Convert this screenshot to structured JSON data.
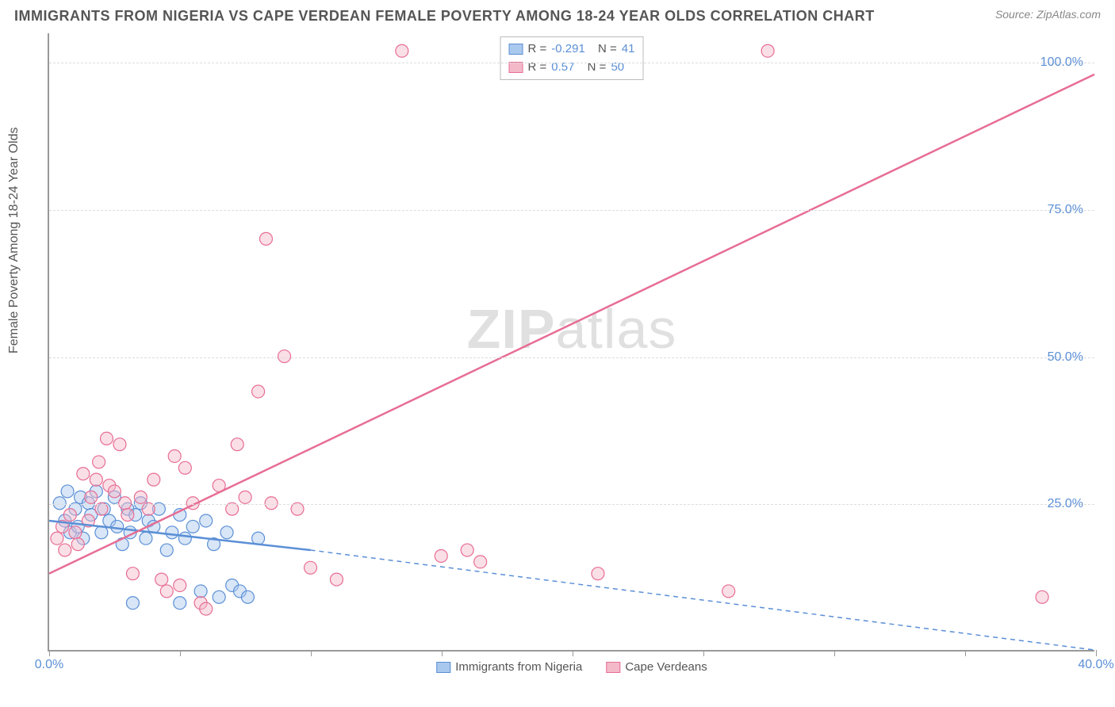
{
  "title": "IMMIGRANTS FROM NIGERIA VS CAPE VERDEAN FEMALE POVERTY AMONG 18-24 YEAR OLDS CORRELATION CHART",
  "source": "Source: ZipAtlas.com",
  "watermark": "ZIPatlas",
  "ylabel": "Female Poverty Among 18-24 Year Olds",
  "chart": {
    "type": "scatter-with-regression",
    "background_color": "#ffffff",
    "grid_color": "#dddddd",
    "axis_color": "#999999",
    "tick_label_color": "#5b8fd6",
    "xlim": [
      0,
      40
    ],
    "ylim": [
      0,
      105
    ],
    "xticks": [
      0,
      5,
      10,
      15,
      20,
      25,
      30,
      35,
      40
    ],
    "xtick_labels": {
      "0": "0.0%",
      "40": "40.0%"
    },
    "yticks": [
      25,
      50,
      75,
      100
    ],
    "ytick_labels": {
      "25": "25.0%",
      "50": "50.0%",
      "75": "75.0%",
      "100": "100.0%"
    },
    "marker_radius": 8,
    "marker_opacity": 0.45,
    "line_width": 2.5,
    "series": [
      {
        "name": "Immigrants from Nigeria",
        "color_fill": "#a9c8ed",
        "color_stroke": "#5b8fd6",
        "r": -0.291,
        "n": 41,
        "regression": {
          "x1": 0,
          "y1": 22,
          "x2": 10,
          "y2": 17,
          "extend_to_x": 40,
          "extend_to_y": 0
        },
        "points": [
          [
            0.4,
            25
          ],
          [
            0.6,
            22
          ],
          [
            0.7,
            27
          ],
          [
            0.8,
            20
          ],
          [
            1.0,
            24
          ],
          [
            1.2,
            26
          ],
          [
            1.1,
            21
          ],
          [
            1.3,
            19
          ],
          [
            1.5,
            25
          ],
          [
            1.6,
            23
          ],
          [
            1.8,
            27
          ],
          [
            2.0,
            20
          ],
          [
            2.1,
            24
          ],
          [
            2.3,
            22
          ],
          [
            2.5,
            26
          ],
          [
            2.6,
            21
          ],
          [
            2.8,
            18
          ],
          [
            3.0,
            24
          ],
          [
            3.1,
            20
          ],
          [
            3.3,
            23
          ],
          [
            3.5,
            25
          ],
          [
            3.7,
            19
          ],
          [
            3.8,
            22
          ],
          [
            4.0,
            21
          ],
          [
            4.2,
            24
          ],
          [
            4.5,
            17
          ],
          [
            4.7,
            20
          ],
          [
            5.0,
            23
          ],
          [
            5.2,
            19
          ],
          [
            5.5,
            21
          ],
          [
            5.8,
            10
          ],
          [
            6.0,
            22
          ],
          [
            6.3,
            18
          ],
          [
            6.5,
            9
          ],
          [
            6.8,
            20
          ],
          [
            7.0,
            11
          ],
          [
            7.3,
            10
          ],
          [
            7.6,
            9
          ],
          [
            8.0,
            19
          ],
          [
            5.0,
            8
          ],
          [
            3.2,
            8
          ]
        ]
      },
      {
        "name": "Cape Verdeans",
        "color_fill": "#f4b9c9",
        "color_stroke": "#e76d94",
        "r": 0.57,
        "n": 50,
        "regression": {
          "x1": 0,
          "y1": 13,
          "x2": 40,
          "y2": 98
        },
        "points": [
          [
            0.3,
            19
          ],
          [
            0.5,
            21
          ],
          [
            0.6,
            17
          ],
          [
            0.8,
            23
          ],
          [
            1.0,
            20
          ],
          [
            1.1,
            18
          ],
          [
            1.3,
            30
          ],
          [
            1.5,
            22
          ],
          [
            1.6,
            26
          ],
          [
            1.8,
            29
          ],
          [
            1.9,
            32
          ],
          [
            2.0,
            24
          ],
          [
            2.2,
            36
          ],
          [
            2.3,
            28
          ],
          [
            2.5,
            27
          ],
          [
            2.7,
            35
          ],
          [
            2.9,
            25
          ],
          [
            3.0,
            23
          ],
          [
            3.2,
            13
          ],
          [
            3.5,
            26
          ],
          [
            3.8,
            24
          ],
          [
            4.0,
            29
          ],
          [
            4.3,
            12
          ],
          [
            4.5,
            10
          ],
          [
            4.8,
            33
          ],
          [
            5.0,
            11
          ],
          [
            5.2,
            31
          ],
          [
            5.5,
            25
          ],
          [
            5.8,
            8
          ],
          [
            6.0,
            7
          ],
          [
            6.5,
            28
          ],
          [
            7.0,
            24
          ],
          [
            7.2,
            35
          ],
          [
            7.5,
            26
          ],
          [
            8.0,
            44
          ],
          [
            8.3,
            70
          ],
          [
            8.5,
            25
          ],
          [
            9.0,
            50
          ],
          [
            9.5,
            24
          ],
          [
            10.0,
            14
          ],
          [
            11.0,
            12
          ],
          [
            13.5,
            102
          ],
          [
            15.0,
            16
          ],
          [
            16.0,
            17
          ],
          [
            16.5,
            15
          ],
          [
            20.0,
            102
          ],
          [
            21.0,
            13
          ],
          [
            26.0,
            10
          ],
          [
            27.5,
            102
          ],
          [
            38.0,
            9
          ]
        ]
      }
    ],
    "legend_top": {
      "r_label": "R =",
      "n_label": "N ="
    },
    "legend_bottom": [
      {
        "label": "Immigrants from Nigeria",
        "fill": "#a9c8ed",
        "stroke": "#5b8fd6"
      },
      {
        "label": "Cape Verdeans",
        "fill": "#f4b9c9",
        "stroke": "#e76d94"
      }
    ]
  }
}
